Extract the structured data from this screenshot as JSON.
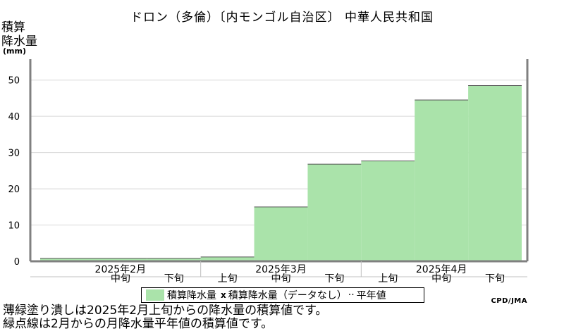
{
  "title": "ドロン（多倫）〔内モンゴル自治区〕 中華人民共和国",
  "ylabel_line1": "積算",
  "ylabel_line2": "降水量",
  "unit": "(mm)",
  "legend": {
    "filled_label": "積算降水量",
    "marker": "x",
    "nodata_label": "積算降水量（データなし）",
    "normal_label": "平年値"
  },
  "credit": "CPD/JMA",
  "notes": [
    "薄緑塗り潰しは2025年2月上旬からの降水量の積算値です。",
    "緑点線は2月からの月降水量平年値の積算値です。"
  ],
  "colors": {
    "fill": "#aae3aa",
    "axis": "#808080",
    "grid": "#d8d8d8"
  },
  "chart_data": {
    "type": "area",
    "ylim": [
      0,
      55
    ],
    "yticks": [
      0,
      10,
      20,
      30,
      40,
      50
    ],
    "grid": true,
    "dekad_labels": [
      "中旬",
      "下旬",
      "上旬",
      "中旬",
      "下旬",
      "上旬",
      "中旬",
      "下旬"
    ],
    "month_labels": [
      "2025年2月",
      "2025年3月",
      "2025年4月"
    ],
    "series": [
      {
        "name": "積算降水量",
        "values": [
          0.8,
          0.8,
          1.2,
          15.0,
          26.8,
          27.7,
          44.5,
          48.5
        ]
      }
    ]
  }
}
